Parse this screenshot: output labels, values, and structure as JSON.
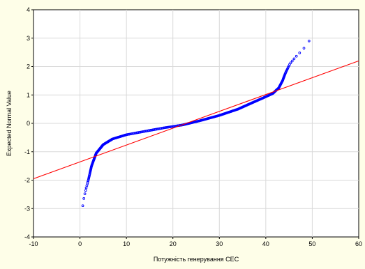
{
  "chart_data": {
    "type": "scatter",
    "title": "",
    "xlabel": "Потужність генерування СЕС",
    "ylabel": "Expected Normal Value",
    "xlim": [
      -10,
      60
    ],
    "ylim": [
      -4,
      4
    ],
    "xticks": [
      "-10",
      "0",
      "10",
      "20",
      "30",
      "40",
      "50",
      "60"
    ],
    "yticks": [
      "4",
      "3",
      "2",
      "1",
      "0",
      "-1",
      "-2",
      "-3",
      "-4"
    ],
    "xtick_values": [
      -10,
      0,
      10,
      20,
      30,
      40,
      50,
      60
    ],
    "ytick_values": [
      4,
      3,
      2,
      1,
      0,
      -1,
      -2,
      -3,
      -4
    ],
    "grid": true,
    "legend": "none",
    "marker_color": "#0000ff",
    "line_color": "#ff0000",
    "fit_line": {
      "x": [
        -10,
        60
      ],
      "y": [
        -1.95,
        2.2
      ]
    },
    "control_points": {
      "x": [
        0.6,
        0.9,
        1.3,
        1.8,
        2.5,
        3.5,
        5,
        7,
        10,
        14,
        18,
        22,
        26,
        30,
        34,
        37,
        39.5,
        41.5,
        42.8,
        43.6,
        44.3,
        45.2,
        46.5,
        48,
        49.3
      ],
      "y": [
        -2.9,
        -2.6,
        -2.3,
        -2.0,
        -1.5,
        -1.05,
        -0.75,
        -0.55,
        -0.4,
        -0.28,
        -0.16,
        -0.06,
        0.1,
        0.28,
        0.5,
        0.72,
        0.9,
        1.05,
        1.25,
        1.5,
        1.8,
        2.1,
        2.35,
        2.6,
        2.9
      ]
    },
    "n_points": 400
  }
}
